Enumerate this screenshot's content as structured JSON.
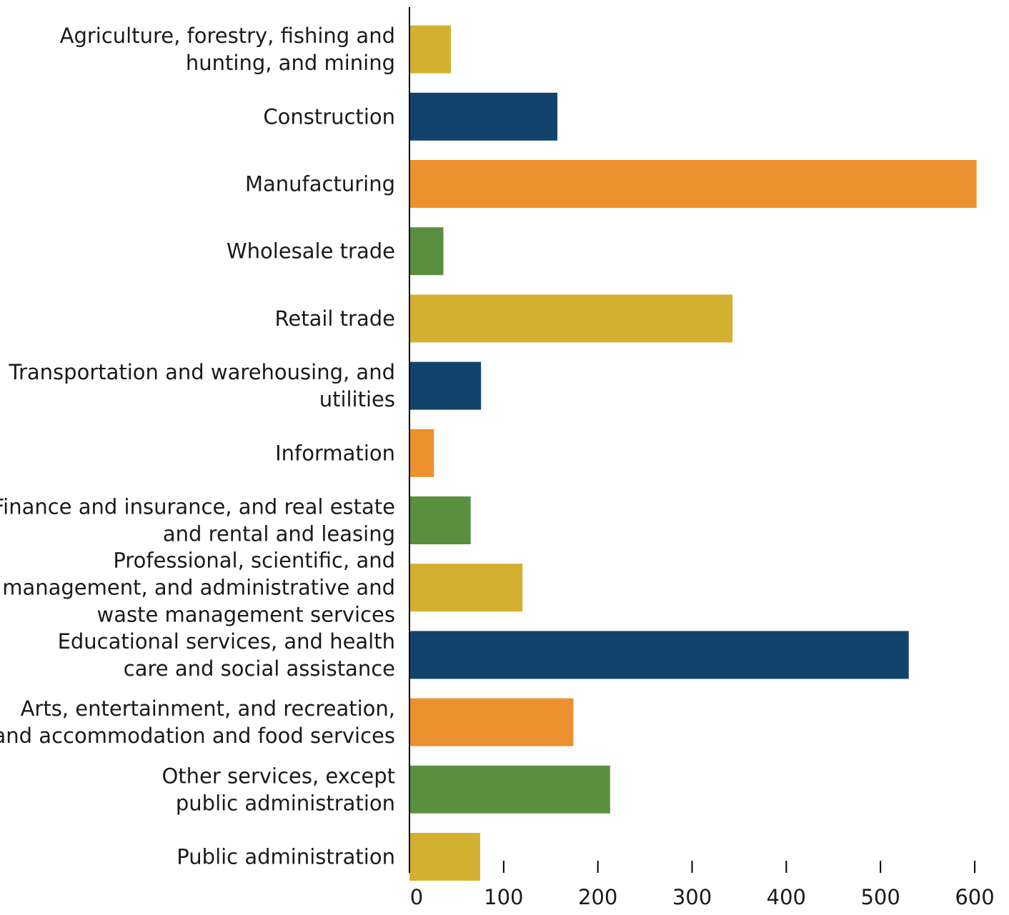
{
  "chart_data": {
    "type": "bar",
    "orientation": "horizontal",
    "title": "",
    "xlabel": "",
    "ylabel": "",
    "xlim": [
      0,
      600
    ],
    "xticks": [
      "0",
      "100",
      "200",
      "300",
      "400",
      "500",
      "600"
    ],
    "grid": false,
    "legend": "none",
    "palette": [
      "#d4b030",
      "#12436d",
      "#ec9030",
      "#5a8f40"
    ],
    "categories": [
      [
        "Agriculture, forestry, fishing and",
        "hunting, and mining"
      ],
      [
        "Construction"
      ],
      [
        "Manufacturing"
      ],
      [
        "Wholesale trade"
      ],
      [
        "Retail trade"
      ],
      [
        "Transportation and warehousing, and",
        "utilities"
      ],
      [
        "Information"
      ],
      [
        "Finance and insurance, and real estate",
        "and rental and leasing"
      ],
      [
        "Professional, scientific, and",
        "management, and administrative and",
        "waste management services"
      ],
      [
        "Educational services, and health",
        "care and social assistance"
      ],
      [
        "Arts, entertainment, and recreation,",
        "and accommodation and food services"
      ],
      [
        "Other services, except",
        "public administration"
      ],
      [
        "Public administration"
      ]
    ],
    "values": [
      44,
      157,
      602,
      36,
      343,
      76,
      26,
      65,
      120,
      530,
      174,
      213,
      75
    ]
  }
}
